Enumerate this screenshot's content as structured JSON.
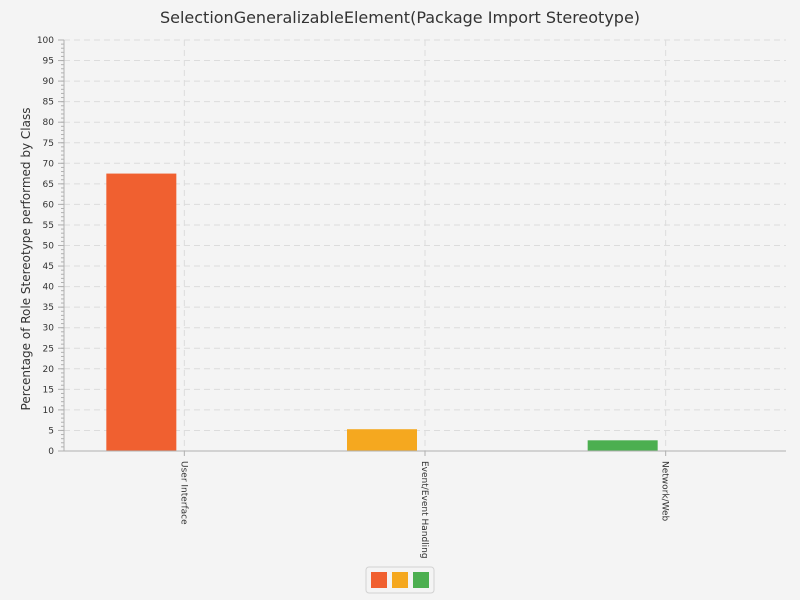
{
  "chart_data": {
    "type": "bar",
    "title": "SelectionGeneralizableElement(Package Import Stereotype)",
    "xlabel": "",
    "ylabel": "Percentage of Role Stereotype performed by Class",
    "ylim": [
      0,
      100
    ],
    "y_ticks": [
      0,
      5,
      10,
      15,
      20,
      25,
      30,
      35,
      40,
      45,
      50,
      55,
      60,
      65,
      70,
      75,
      80,
      85,
      90,
      95,
      100
    ],
    "grid": true,
    "categories": [
      "User Interface",
      "Event/Event Handling",
      "Network/Web"
    ],
    "values": [
      67.5,
      5.3,
      2.6
    ],
    "colors": [
      "#f06030",
      "#f5a81f",
      "#4caf50"
    ],
    "legend": {
      "placement": "bottom",
      "entries": [
        {
          "name": "",
          "color": "#f06030"
        },
        {
          "name": "",
          "color": "#f5a81f"
        },
        {
          "name": "",
          "color": "#4caf50"
        }
      ]
    }
  }
}
